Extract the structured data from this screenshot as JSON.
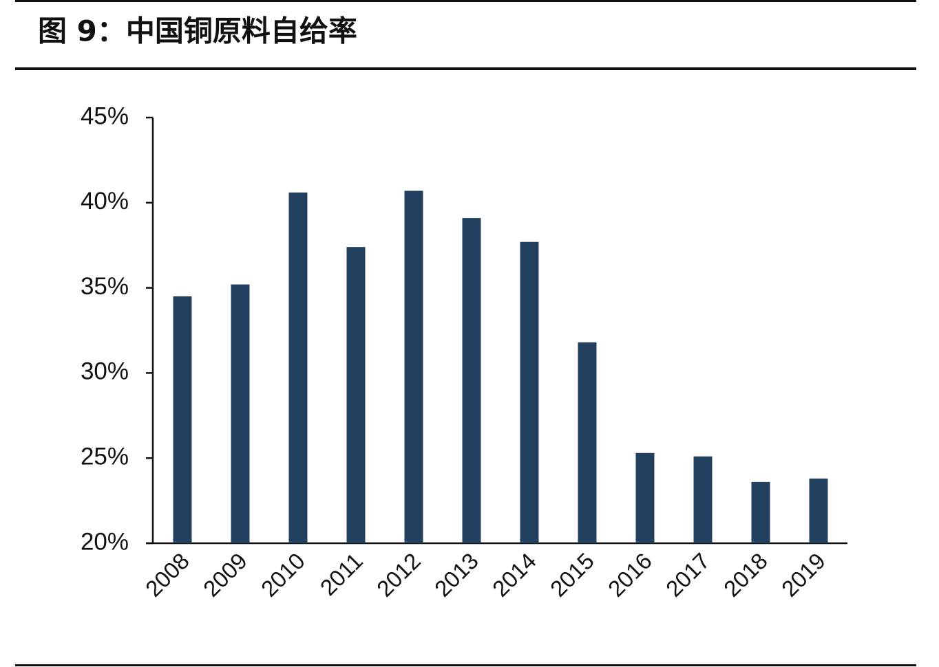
{
  "chart_data": {
    "type": "bar",
    "title": "图 9：中国铜原料自给率",
    "categories": [
      "2008",
      "2009",
      "2010",
      "2011",
      "2012",
      "2013",
      "2014",
      "2015",
      "2016",
      "2017",
      "2018",
      "2019"
    ],
    "values": [
      34.5,
      35.2,
      40.6,
      37.4,
      40.7,
      39.1,
      37.7,
      31.8,
      25.3,
      25.1,
      23.6,
      23.8
    ],
    "color": "#23405f",
    "ylim": [
      20,
      45
    ],
    "yticks": [
      {
        "value": 20,
        "label": "20%"
      },
      {
        "value": 25,
        "label": "25%"
      },
      {
        "value": 30,
        "label": "30%"
      },
      {
        "value": 35,
        "label": "35%"
      },
      {
        "value": 40,
        "label": "40%"
      },
      {
        "value": 45,
        "label": "45%"
      }
    ],
    "grid": false
  }
}
